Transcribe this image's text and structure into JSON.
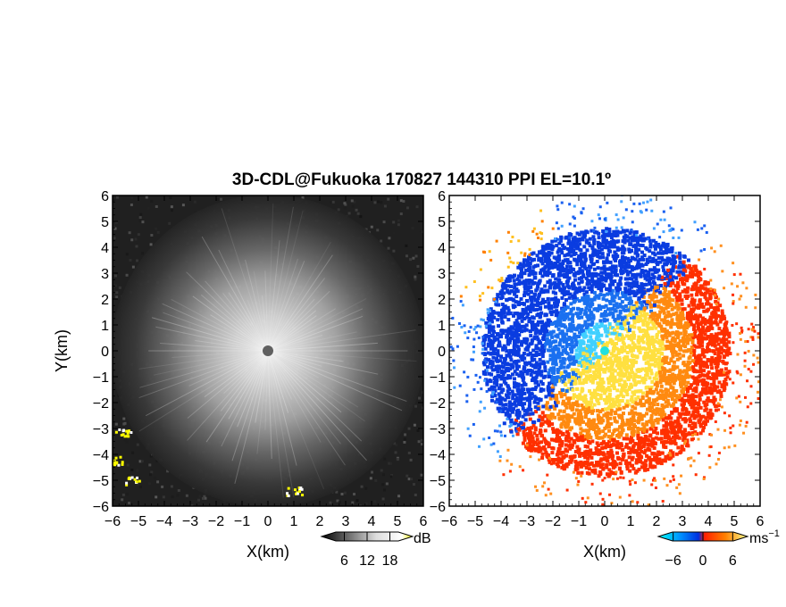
{
  "chart_data": [
    {
      "type": "heatmap",
      "panel": "left",
      "quantity": "SNR",
      "title": "3D-CDL@Fukuoka 170827 144310 PPI EL=10.1º",
      "xlabel": "X(km)",
      "ylabel": "Y(km)",
      "xlim": [
        -6,
        6
      ],
      "ylim": [
        -6,
        6
      ],
      "xticks": [
        -6,
        -5,
        -4,
        -3,
        -2,
        -1,
        0,
        1,
        2,
        3,
        4,
        5,
        6
      ],
      "yticks": [
        -6,
        -5,
        -4,
        -3,
        -2,
        -1,
        0,
        1,
        2,
        3,
        4,
        5,
        6
      ],
      "colorbar": {
        "unit": "dB",
        "ticks": [
          6,
          12,
          18
        ],
        "range": [
          0,
          24
        ],
        "colors": [
          "#000000",
          "#ffffff",
          "#ffff00"
        ]
      },
      "features": [
        {
          "kind": "center_dot",
          "x": 0,
          "y": 0
        },
        {
          "kind": "yellow_patch",
          "x": -5.9,
          "y": -4.2
        },
        {
          "kind": "yellow_patch",
          "x": -5.3,
          "y": -5.0
        },
        {
          "kind": "yellow_patch",
          "x": -5.6,
          "y": -3.1
        },
        {
          "kind": "yellow_patch",
          "x": 1.0,
          "y": -5.4
        }
      ]
    },
    {
      "type": "heatmap",
      "panel": "right",
      "quantity": "Doppler velocity",
      "xlabel": "X(km)",
      "xlim": [
        -6,
        6
      ],
      "ylim": [
        -6,
        6
      ],
      "xticks": [
        -6,
        -5,
        -4,
        -3,
        -2,
        -1,
        0,
        1,
        2,
        3,
        4,
        5,
        6
      ],
      "yticks": [
        -6,
        -5,
        -4,
        -3,
        -2,
        -1,
        0,
        1,
        2,
        3,
        4,
        5,
        6
      ],
      "colorbar": {
        "unit": "ms",
        "unit_exponent": "−1",
        "ticks": [
          -6,
          0,
          6
        ],
        "range": [
          -9,
          9
        ],
        "colors": [
          "#00ffff",
          "#0040ff",
          "#ff2000",
          "#ff8000",
          "#ffff80"
        ]
      },
      "features": [
        {
          "kind": "approaching_region",
          "center": [
            -1.5,
            0.8
          ],
          "color": "#1060f0"
        },
        {
          "kind": "receding_region",
          "center": [
            1.2,
            -1.2
          ],
          "color": "#ff9020"
        },
        {
          "kind": "center_dot",
          "x": 0,
          "y": 0,
          "color": "#20e0e0"
        }
      ]
    }
  ],
  "labels": {
    "title": "3D-CDL@Fukuoka 170827 144310 PPI EL=10.1º",
    "ylabel_left": "Y(km)",
    "xlabel_left": "X(km)",
    "xlabel_right": "X(km)",
    "cb_left_unit": "dB",
    "cb_right_unit": "ms",
    "cb_right_exp": "−1"
  }
}
